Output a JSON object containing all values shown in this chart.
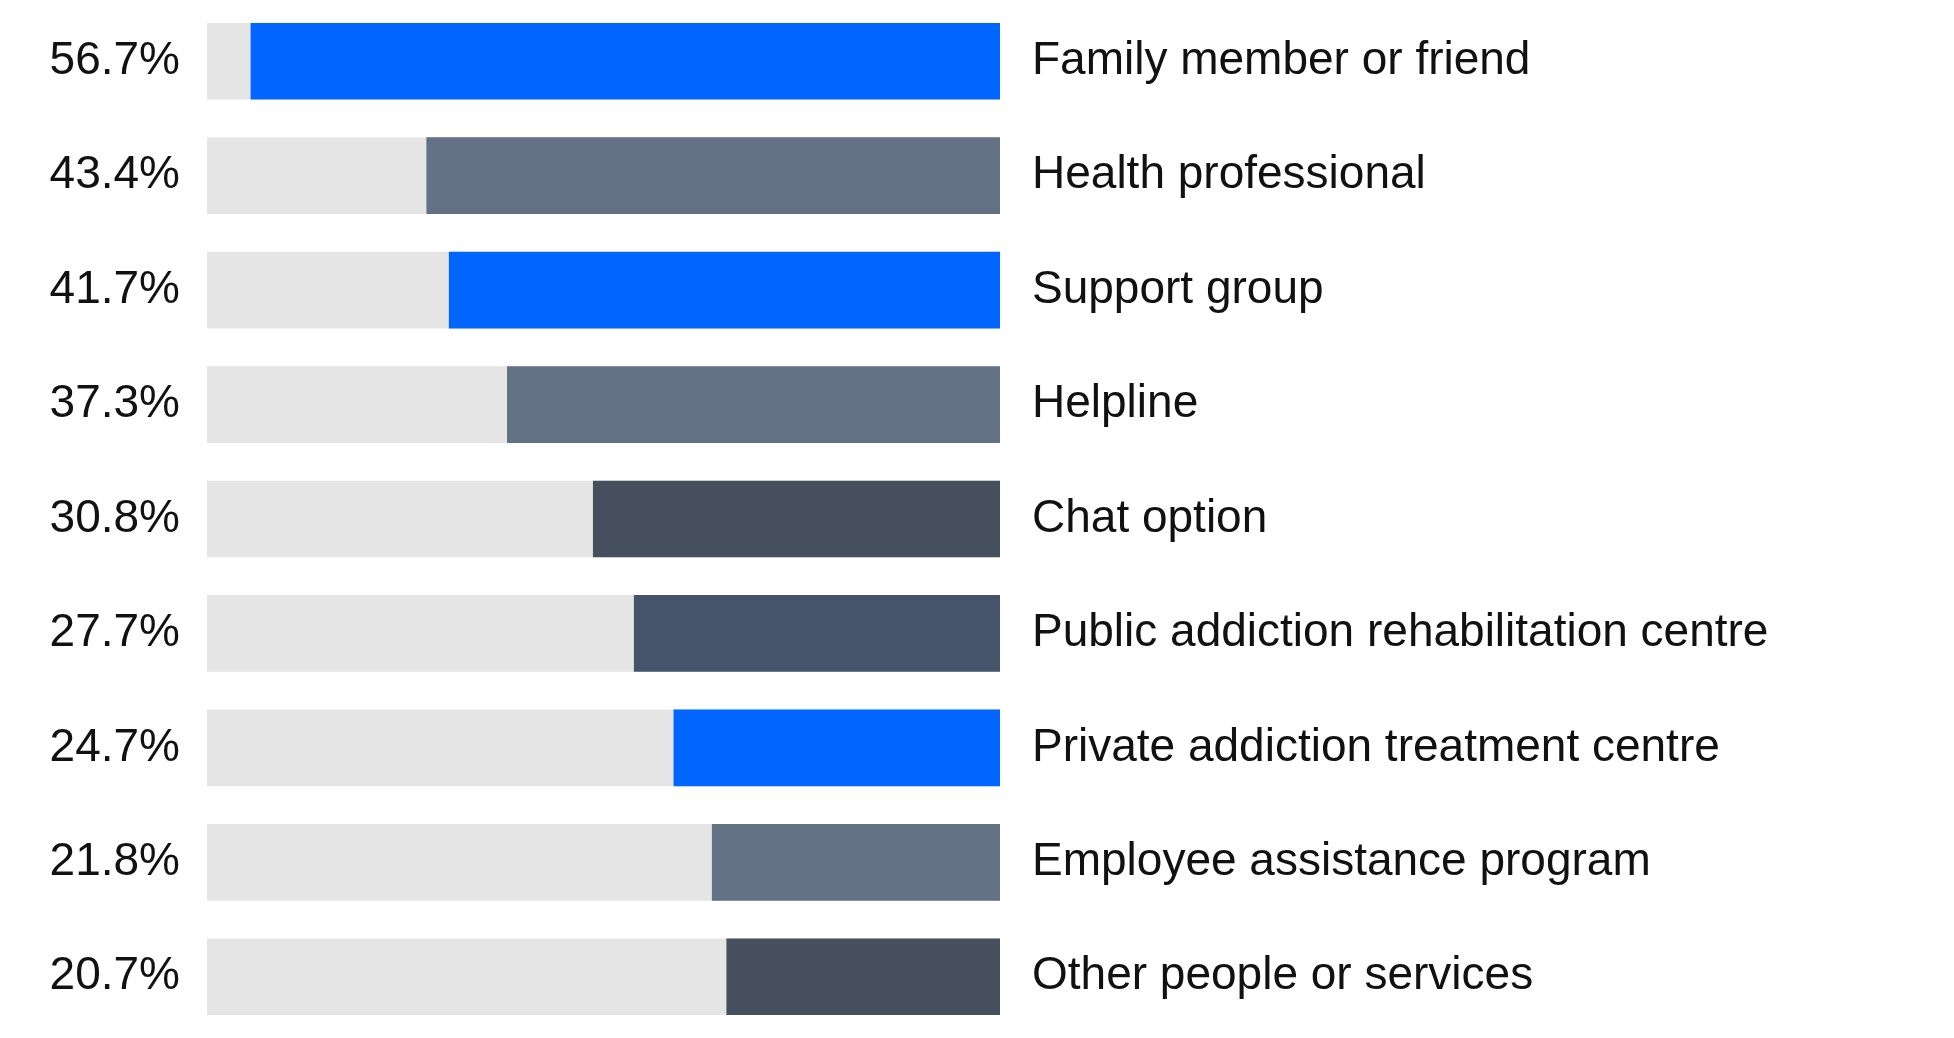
{
  "chart_data": {
    "type": "bar",
    "orientation": "horizontal",
    "categories": [
      "Family member or friend",
      "Health professional",
      "Support group",
      "Helpline",
      "Chat option",
      "Public addiction rehabilitation centre",
      "Private addiction treatment centre",
      "Employee assistance program",
      "Other people or services"
    ],
    "values": [
      56.7,
      43.4,
      41.7,
      37.3,
      30.8,
      27.7,
      24.7,
      21.8,
      20.7
    ],
    "value_labels": [
      "56.7%",
      "43.4%",
      "41.7%",
      "37.3%",
      "30.8%",
      "27.7%",
      "24.7%",
      "21.8%",
      "20.7%"
    ],
    "colors": [
      "#0066ff",
      "#637184",
      "#0066ff",
      "#637184",
      "#454f5e",
      "#45546b",
      "#0066ff",
      "#637184",
      "#454f5e"
    ],
    "tick_labels": false,
    "legend": false
  }
}
